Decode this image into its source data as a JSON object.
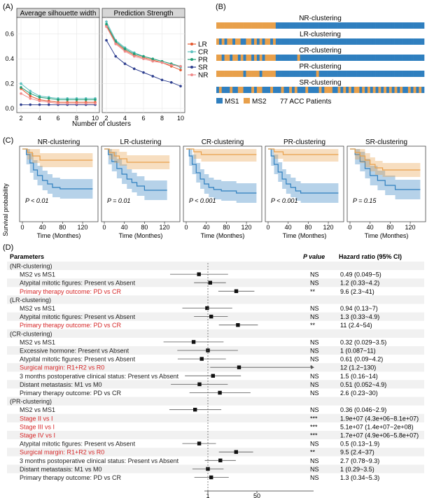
{
  "panel_labels": {
    "a": "(A)",
    "b": "(B)",
    "c": "(C)",
    "d": "(D)"
  },
  "chart_data": [
    {
      "type": "line",
      "title": "Average silhouette width",
      "xlabel": "",
      "ylabel": "",
      "x": [
        2,
        3,
        4,
        5,
        6,
        7,
        8,
        9,
        10
      ],
      "xticks": [
        "2",
        "4",
        "6",
        "8",
        "10"
      ],
      "yticks": [
        "0.0",
        "0.2",
        "0.4",
        "0.6"
      ],
      "ylim": [
        0,
        0.7
      ],
      "series": [
        {
          "name": "LR",
          "color": "#e4572e",
          "values": [
            0.16,
            0.1,
            0.07,
            0.06,
            0.05,
            0.05,
            0.05,
            0.05,
            0.05
          ]
        },
        {
          "name": "CR",
          "color": "#5bc0be",
          "values": [
            0.2,
            0.14,
            0.1,
            0.09,
            0.08,
            0.08,
            0.08,
            0.08,
            0.08
          ]
        },
        {
          "name": "PR",
          "color": "#1f9e77",
          "values": [
            0.17,
            0.12,
            0.09,
            0.08,
            0.07,
            0.07,
            0.07,
            0.07,
            0.07
          ]
        },
        {
          "name": "SR",
          "color": "#2e3f8f",
          "values": [
            0.03,
            0.03,
            0.03,
            0.03,
            0.03,
            0.03,
            0.03,
            0.03,
            0.03
          ]
        },
        {
          "name": "NR",
          "color": "#f08a8a",
          "values": [
            0.12,
            0.08,
            0.06,
            0.05,
            0.04,
            0.04,
            0.04,
            0.04,
            0.04
          ]
        }
      ]
    },
    {
      "type": "line",
      "title": "Prediction Strength",
      "xlabel": "Number of clusters",
      "ylabel": "",
      "x": [
        2,
        3,
        4,
        5,
        6,
        7,
        8,
        9,
        10
      ],
      "xticks": [
        "2",
        "4",
        "6",
        "8",
        "10"
      ],
      "ylim": [
        0,
        0.7
      ],
      "legend_position": "right",
      "series": [
        {
          "name": "LR",
          "color": "#e4572e",
          "values": [
            0.67,
            0.53,
            0.47,
            0.43,
            0.41,
            0.39,
            0.37,
            0.34,
            0.31
          ]
        },
        {
          "name": "CR",
          "color": "#5bc0be",
          "values": [
            0.7,
            0.55,
            0.49,
            0.45,
            0.42,
            0.4,
            0.38,
            0.36,
            0.33
          ]
        },
        {
          "name": "PR",
          "color": "#1f9e77",
          "values": [
            0.68,
            0.54,
            0.48,
            0.44,
            0.42,
            0.4,
            0.38,
            0.36,
            0.34
          ]
        },
        {
          "name": "SR",
          "color": "#2e3f8f",
          "values": [
            0.55,
            0.42,
            0.36,
            0.32,
            0.29,
            0.26,
            0.23,
            0.21,
            0.18
          ]
        },
        {
          "name": "NR",
          "color": "#f08a8a",
          "values": [
            0.66,
            0.52,
            0.46,
            0.42,
            0.4,
            0.38,
            0.37,
            0.35,
            0.34
          ]
        }
      ]
    },
    {
      "type": "heatmap",
      "rows": [
        "NR-clustering",
        "LR-clustering",
        "CR-clustering",
        "PR-clustering",
        "SR-clustering"
      ],
      "n_patients": 77,
      "legend": [
        {
          "label": "MS1",
          "color": "#2f7fbf"
        },
        {
          "label": "MS2",
          "color": "#e8a04b"
        }
      ],
      "caption": "77 ACC Patients",
      "assignments": [
        "22222222222222222222221111111111111111111111111111111111111111111111111111111",
        "21212212211221212122121111111111111111111111111111111111111111111111111111111",
        "22122122121221212122221111111121111111111111111111111111111111111111111111111",
        "22222222221222221222221111111111111112111111111111111111111111111111111111111",
        "12111211221112122111211121121211121111212221121212122121212121212121211212121"
      ]
    },
    {
      "type": "line",
      "panel": "C",
      "ylabel": "Survival probability",
      "xlabel": "Time (Monthes)",
      "xticks": [
        "0",
        "40",
        "80",
        "120"
      ],
      "xlim": [
        0,
        145
      ],
      "ylim": [
        0,
        1
      ],
      "colors": {
        "MS1": "#2f7fbf",
        "MS2": "#e8a04b"
      },
      "plots": [
        {
          "title": "NR-clustering",
          "p_value": "P < 0.01",
          "MS1": {
            "x": [
              0,
              8,
              15,
              22,
              30,
              40,
              50,
              60,
              75,
              140
            ],
            "y": [
              1.0,
              0.92,
              0.8,
              0.7,
              0.62,
              0.55,
              0.5,
              0.45,
              0.43,
              0.43
            ]
          },
          "MS2": {
            "x": [
              0,
              10,
              20,
              35,
              140
            ],
            "y": [
              1.0,
              0.95,
              0.9,
              0.84,
              0.84
            ]
          }
        },
        {
          "title": "LR-clustering",
          "p_value": "P = 0.01",
          "MS1": {
            "x": [
              0,
              8,
              15,
              25,
              35,
              45,
              55,
              65,
              80,
              125
            ],
            "y": [
              1.0,
              0.92,
              0.82,
              0.72,
              0.64,
              0.57,
              0.52,
              0.47,
              0.41,
              0.41
            ]
          },
          "MS2": {
            "x": [
              0,
              10,
              20,
              30,
              45,
              130
            ],
            "y": [
              1.0,
              0.95,
              0.9,
              0.86,
              0.81,
              0.81
            ]
          }
        },
        {
          "title": "CR-clustering",
          "p_value": "P < 0.001",
          "MS1": {
            "x": [
              0,
              6,
              12,
              20,
              28,
              36,
              45,
              55,
              70,
              100,
              140
            ],
            "y": [
              1.0,
              0.9,
              0.78,
              0.66,
              0.57,
              0.5,
              0.45,
              0.42,
              0.4,
              0.37,
              0.37
            ]
          },
          "MS2": {
            "x": [
              0,
              15,
              30,
              140
            ],
            "y": [
              1.0,
              0.96,
              0.92,
              0.92
            ]
          }
        },
        {
          "title": "PR-clustering",
          "p_value": "P < 0.001",
          "MS1": {
            "x": [
              0,
              6,
              12,
              20,
              28,
              36,
              45,
              55,
              65,
              140
            ],
            "y": [
              1.0,
              0.9,
              0.78,
              0.67,
              0.57,
              0.5,
              0.45,
              0.4,
              0.37,
              0.37
            ]
          },
          "MS2": {
            "x": [
              0,
              12,
              30,
              140
            ],
            "y": [
              1.0,
              0.96,
              0.92,
              0.92
            ]
          }
        },
        {
          "title": "SR-clustering",
          "p_value": "P = 0.15",
          "MS1": {
            "x": [
              0,
              10,
              20,
              30,
              40,
              55,
              70,
              90,
              140
            ],
            "y": [
              1.0,
              0.92,
              0.82,
              0.72,
              0.62,
              0.55,
              0.48,
              0.42,
              0.42
            ]
          },
          "MS2": {
            "x": [
              0,
              10,
              20,
              30,
              40,
              50,
              65,
              140
            ],
            "y": [
              1.0,
              0.95,
              0.9,
              0.84,
              0.78,
              0.73,
              0.7,
              0.7
            ]
          }
        }
      ]
    },
    {
      "type": "table",
      "panel": "D",
      "columns": [
        "Parameters",
        "P value",
        "Hazard ratio (95% CI)"
      ],
      "xticks": [
        "1",
        "50"
      ],
      "rows": [
        {
          "label": "(NR-clustering)",
          "group": true
        },
        {
          "label": "MS2 vs MS1",
          "p": "NS",
          "hr_text": "0.49 (0.049~5)",
          "hr": 0.49,
          "lo": 0.049,
          "hi": 5
        },
        {
          "label": "Atypital mitotic figures: Present vs Absent",
          "p": "NS",
          "hr_text": "1.2 (0.33~4.2)",
          "hr": 1.2,
          "lo": 0.33,
          "hi": 4.2
        },
        {
          "label": "Primary therapy outcome: PD vs CR",
          "p": "**",
          "hr_text": "9.6 (2.3~41)",
          "hr": 9.6,
          "lo": 2.3,
          "hi": 41,
          "highlight": true
        },
        {
          "label": "(LR-clustering)",
          "group": true
        },
        {
          "label": "MS2 vs MS1",
          "p": "NS",
          "hr_text": "0.94 (0.13~7)",
          "hr": 0.94,
          "lo": 0.13,
          "hi": 7
        },
        {
          "label": "Atypital mitotic figures: Present vs Absent",
          "p": "NS",
          "hr_text": "1.3 (0.33~4.9)",
          "hr": 1.3,
          "lo": 0.33,
          "hi": 4.9
        },
        {
          "label": "Primary therapy outcome: PD vs CR",
          "p": "**",
          "hr_text": "11 (2.4~54)",
          "hr": 11,
          "lo": 2.4,
          "hi": 54,
          "highlight": true
        },
        {
          "label": "(CR-clustering)",
          "group": true
        },
        {
          "label": "MS2 vs MS1",
          "p": "NS",
          "hr_text": "0.32 (0.029~3.5)",
          "hr": 0.32,
          "lo": 0.029,
          "hi": 3.5
        },
        {
          "label": "Excessive hormone: Present vs Absent",
          "p": "NS",
          "hr_text": "1 (0.087~11)",
          "hr": 1,
          "lo": 0.087,
          "hi": 11
        },
        {
          "label": "Atypital mitotic figures: Present vs Absent",
          "p": "NS",
          "hr_text": "0.61 (0.09~4.2)",
          "hr": 0.61,
          "lo": 0.09,
          "hi": 4.2
        },
        {
          "label": "Surgical margin: R1+R2 vs R0",
          "p": "*",
          "hr_text": "12 (1.2~130)",
          "hr": 12,
          "lo": 1.2,
          "hi": 130,
          "highlight": true,
          "arrow": true
        },
        {
          "label": "3 months postoperative clinical status: Present vs Absent",
          "p": "NS",
          "hr_text": "1.5 (0.16~14)",
          "hr": 1.5,
          "lo": 0.16,
          "hi": 14
        },
        {
          "label": "Distant metastasis: M1 vs M0",
          "p": "NS",
          "hr_text": "0.51 (0.052~4.9)",
          "hr": 0.51,
          "lo": 0.052,
          "hi": 4.9
        },
        {
          "label": "Primary therapy outcome: PD vs CR",
          "p": "NS",
          "hr_text": "2.6 (0.23~30)",
          "hr": 2.6,
          "lo": 0.23,
          "hi": 30
        },
        {
          "label": "(PR-clustering)",
          "group": true
        },
        {
          "label": "MS2 vs MS1",
          "p": "NS",
          "hr_text": "0.36 (0.046~2.9)",
          "hr": 0.36,
          "lo": 0.046,
          "hi": 2.9
        },
        {
          "label": "Stage II vs I",
          "p": "***",
          "hr_text": "1.9e+07 (4.3e+06~8.1e+07)",
          "highlight": true
        },
        {
          "label": "Stage III vs I",
          "p": "***",
          "hr_text": "5.1e+07 (1.4e+07~2e+08)",
          "highlight": true
        },
        {
          "label": "Stage IV vs I",
          "p": "***",
          "hr_text": "1.7e+07 (4.9e+06~5.8e+07)",
          "highlight": true
        },
        {
          "label": "Atypital mitotic figures: Present vs Absent",
          "p": "NS",
          "hr_text": "0.5 (0.13~1.9)",
          "hr": 0.5,
          "lo": 0.13,
          "hi": 1.9
        },
        {
          "label": "Surgical margin: R1+R2 vs R0",
          "p": "**",
          "hr_text": "9.5 (2.4~37)",
          "hr": 9.5,
          "lo": 2.4,
          "hi": 37,
          "highlight": true
        },
        {
          "label": "3 months postoperative clinical status: Present vs Absent",
          "p": "NS",
          "hr_text": "2.7 (0.78~9.3)",
          "hr": 2.7,
          "lo": 0.78,
          "hi": 9.3
        },
        {
          "label": "Distant metastasis: M1 vs M0",
          "p": "NS",
          "hr_text": "1 (0.29~3.5)",
          "hr": 1,
          "lo": 0.29,
          "hi": 3.5
        },
        {
          "label": "Primary therapy outcome: PD vs CR",
          "p": "NS",
          "hr_text": "1.3 (0.34~5.3)",
          "hr": 1.3,
          "lo": 0.34,
          "hi": 5.3
        }
      ]
    }
  ]
}
